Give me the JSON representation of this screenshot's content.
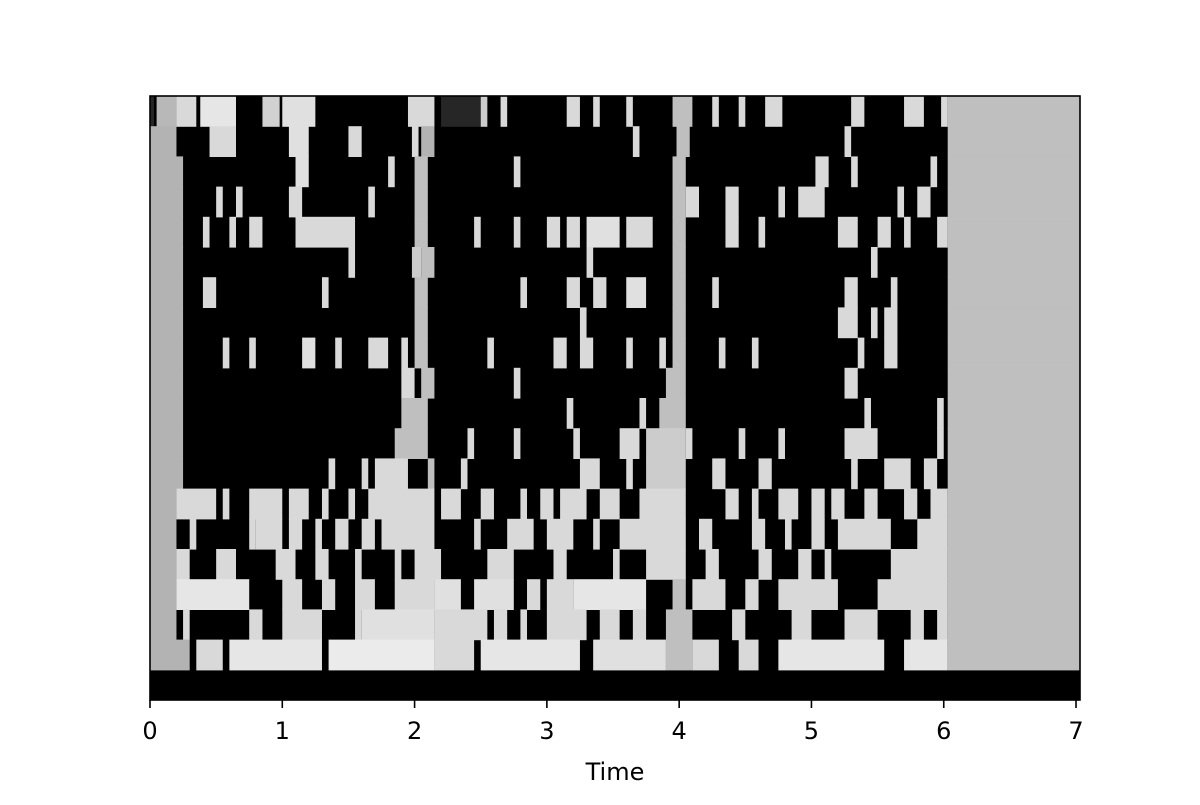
{
  "chart_data": {
    "type": "heatmap",
    "title": "",
    "xlabel": "Time",
    "ylabel": "",
    "xlim": [
      0,
      7.03
    ],
    "xticks": [
      0,
      1,
      2,
      3,
      4,
      5,
      6,
      7
    ],
    "colormap": "grayscale",
    "colors": {
      "low": "#000000",
      "high": "#ffffff",
      "frame": "#000000"
    },
    "grid": false,
    "legend": "none",
    "row_count": 20,
    "rows_top_to_bottom": [
      [
        [
          0,
          0.03,
          0.15
        ],
        [
          0.05,
          0.2,
          0.72
        ],
        [
          0.2,
          0.35,
          0.85
        ],
        [
          0.38,
          0.65,
          0.9
        ],
        [
          0.85,
          0.98,
          0.82
        ],
        [
          1.0,
          1.25,
          0.88
        ],
        [
          1.95,
          2.15,
          0.85
        ],
        [
          2.2,
          2.5,
          0.15
        ],
        [
          2.5,
          2.55,
          0.8
        ],
        [
          2.65,
          2.7,
          0.85
        ],
        [
          3.15,
          3.25,
          0.85
        ],
        [
          3.35,
          3.4,
          0.85
        ],
        [
          3.6,
          3.65,
          0.85
        ],
        [
          3.95,
          4.1,
          0.75
        ],
        [
          4.25,
          4.3,
          0.85
        ],
        [
          4.45,
          4.5,
          0.85
        ],
        [
          4.65,
          4.78,
          0.85
        ],
        [
          5.3,
          5.4,
          0.85
        ],
        [
          5.7,
          5.85,
          0.85
        ],
        [
          5.98,
          6.03,
          0.85
        ],
        [
          6.03,
          7.03,
          0.75
        ]
      ],
      [
        [
          0.0,
          0.2,
          0.7
        ],
        [
          0.45,
          0.65,
          0.85
        ],
        [
          1.05,
          1.2,
          0.88
        ],
        [
          1.5,
          1.6,
          0.85
        ],
        [
          1.98,
          2.03,
          0.85
        ],
        [
          2.05,
          2.15,
          0.7
        ],
        [
          3.65,
          3.7,
          0.85
        ],
        [
          3.98,
          4.08,
          0.75
        ],
        [
          5.25,
          5.3,
          0.85
        ],
        [
          6.03,
          7.03,
          0.75
        ]
      ],
      [
        [
          0.0,
          0.25,
          0.7
        ],
        [
          1.1,
          1.2,
          0.88
        ],
        [
          1.8,
          1.85,
          0.85
        ],
        [
          2.0,
          2.1,
          0.75
        ],
        [
          2.75,
          2.8,
          0.85
        ],
        [
          3.95,
          4.05,
          0.75
        ],
        [
          5.03,
          5.13,
          0.85
        ],
        [
          5.3,
          5.35,
          0.85
        ],
        [
          5.9,
          5.95,
          0.85
        ],
        [
          6.03,
          7.03,
          0.75
        ]
      ],
      [
        [
          0.0,
          0.25,
          0.7
        ],
        [
          0.5,
          0.55,
          0.85
        ],
        [
          0.65,
          0.7,
          0.85
        ],
        [
          1.05,
          1.15,
          0.85
        ],
        [
          1.65,
          1.7,
          0.85
        ],
        [
          2.0,
          2.1,
          0.75
        ],
        [
          3.95,
          4.05,
          0.75
        ],
        [
          4.05,
          4.15,
          0.85
        ],
        [
          4.35,
          4.45,
          0.85
        ],
        [
          4.75,
          4.8,
          0.85
        ],
        [
          4.9,
          5.1,
          0.85
        ],
        [
          5.65,
          5.7,
          0.85
        ],
        [
          5.8,
          5.9,
          0.85
        ],
        [
          6.03,
          7.03,
          0.75
        ]
      ],
      [
        [
          0.0,
          0.25,
          0.7
        ],
        [
          0.4,
          0.45,
          0.85
        ],
        [
          0.6,
          0.65,
          0.85
        ],
        [
          0.75,
          0.85,
          0.85
        ],
        [
          1.1,
          1.55,
          0.85
        ],
        [
          2.0,
          2.1,
          0.75
        ],
        [
          2.45,
          2.5,
          0.85
        ],
        [
          2.75,
          2.8,
          0.85
        ],
        [
          3.0,
          3.1,
          0.85
        ],
        [
          3.15,
          3.25,
          0.85
        ],
        [
          3.3,
          3.55,
          0.88
        ],
        [
          3.6,
          3.8,
          0.85
        ],
        [
          3.95,
          4.05,
          0.75
        ],
        [
          4.35,
          4.45,
          0.85
        ],
        [
          4.6,
          4.65,
          0.85
        ],
        [
          5.2,
          5.35,
          0.85
        ],
        [
          5.5,
          5.6,
          0.85
        ],
        [
          5.7,
          5.75,
          0.85
        ],
        [
          5.95,
          6.03,
          0.85
        ],
        [
          6.03,
          7.03,
          0.75
        ]
      ],
      [
        [
          0.0,
          0.25,
          0.7
        ],
        [
          1.5,
          1.55,
          0.85
        ],
        [
          1.98,
          2.05,
          0.8
        ],
        [
          2.05,
          2.15,
          0.75
        ],
        [
          3.3,
          3.35,
          0.85
        ],
        [
          3.95,
          4.05,
          0.75
        ],
        [
          5.45,
          5.5,
          0.85
        ],
        [
          6.03,
          7.03,
          0.75
        ]
      ],
      [
        [
          0.0,
          0.25,
          0.7
        ],
        [
          0.4,
          0.5,
          0.85
        ],
        [
          1.3,
          1.35,
          0.85
        ],
        [
          2.0,
          2.1,
          0.75
        ],
        [
          2.8,
          2.85,
          0.85
        ],
        [
          3.15,
          3.25,
          0.85
        ],
        [
          3.35,
          3.45,
          0.85
        ],
        [
          3.6,
          3.75,
          0.88
        ],
        [
          3.95,
          4.05,
          0.75
        ],
        [
          4.25,
          4.3,
          0.85
        ],
        [
          5.25,
          5.35,
          0.85
        ],
        [
          5.6,
          5.65,
          0.85
        ],
        [
          6.03,
          7.03,
          0.75
        ]
      ],
      [
        [
          0.0,
          0.25,
          0.7
        ],
        [
          2.0,
          2.1,
          0.75
        ],
        [
          3.25,
          3.3,
          0.85
        ],
        [
          3.95,
          4.05,
          0.75
        ],
        [
          5.2,
          5.35,
          0.85
        ],
        [
          5.45,
          5.5,
          0.85
        ],
        [
          5.55,
          5.65,
          0.85
        ],
        [
          6.03,
          7.03,
          0.75
        ]
      ],
      [
        [
          0.0,
          0.25,
          0.7
        ],
        [
          0.55,
          0.6,
          0.85
        ],
        [
          0.75,
          0.8,
          0.85
        ],
        [
          1.15,
          1.25,
          0.88
        ],
        [
          1.4,
          1.45,
          0.85
        ],
        [
          1.65,
          1.8,
          0.85
        ],
        [
          1.9,
          1.95,
          0.85
        ],
        [
          2.0,
          2.1,
          0.75
        ],
        [
          2.55,
          2.6,
          0.85
        ],
        [
          3.05,
          3.15,
          0.85
        ],
        [
          3.25,
          3.35,
          0.85
        ],
        [
          3.6,
          3.65,
          0.85
        ],
        [
          3.85,
          3.9,
          0.85
        ],
        [
          3.95,
          4.05,
          0.75
        ],
        [
          4.3,
          4.35,
          0.85
        ],
        [
          4.55,
          4.6,
          0.85
        ],
        [
          5.35,
          5.4,
          0.85
        ],
        [
          5.55,
          5.65,
          0.85
        ],
        [
          6.03,
          7.03,
          0.75
        ]
      ],
      [
        [
          0.0,
          0.25,
          0.7
        ],
        [
          1.9,
          2.0,
          0.85
        ],
        [
          2.05,
          2.15,
          0.75
        ],
        [
          2.75,
          2.8,
          0.85
        ],
        [
          3.9,
          4.05,
          0.75
        ],
        [
          5.25,
          5.35,
          0.85
        ],
        [
          6.03,
          7.03,
          0.75
        ]
      ],
      [
        [
          0.0,
          0.25,
          0.7
        ],
        [
          1.9,
          2.1,
          0.75
        ],
        [
          3.15,
          3.2,
          0.85
        ],
        [
          3.7,
          3.75,
          0.85
        ],
        [
          3.85,
          4.05,
          0.75
        ],
        [
          5.4,
          5.45,
          0.85
        ],
        [
          5.95,
          6.0,
          0.85
        ],
        [
          6.03,
          7.03,
          0.75
        ]
      ],
      [
        [
          0.0,
          0.25,
          0.7
        ],
        [
          1.85,
          2.1,
          0.75
        ],
        [
          2.4,
          2.45,
          0.85
        ],
        [
          2.75,
          2.8,
          0.85
        ],
        [
          3.2,
          3.25,
          0.85
        ],
        [
          3.55,
          3.7,
          0.85
        ],
        [
          3.75,
          4.05,
          0.8
        ],
        [
          4.05,
          4.1,
          0.85
        ],
        [
          4.45,
          4.5,
          0.85
        ],
        [
          4.75,
          4.8,
          0.85
        ],
        [
          5.25,
          5.5,
          0.85
        ],
        [
          5.95,
          6.0,
          0.85
        ],
        [
          6.03,
          7.03,
          0.75
        ]
      ],
      [
        [
          0.0,
          0.25,
          0.7
        ],
        [
          1.35,
          1.4,
          0.85
        ],
        [
          1.6,
          1.65,
          0.85
        ],
        [
          1.7,
          1.95,
          0.85
        ],
        [
          2.1,
          2.15,
          0.75
        ],
        [
          2.35,
          2.4,
          0.85
        ],
        [
          3.25,
          3.4,
          0.85
        ],
        [
          3.6,
          3.65,
          0.85
        ],
        [
          3.75,
          4.05,
          0.8
        ],
        [
          4.25,
          4.35,
          0.85
        ],
        [
          4.6,
          4.7,
          0.85
        ],
        [
          5.3,
          5.35,
          0.85
        ],
        [
          5.55,
          5.75,
          0.85
        ],
        [
          5.85,
          5.95,
          0.85
        ],
        [
          6.03,
          7.03,
          0.75
        ]
      ],
      [
        [
          0.0,
          0.2,
          0.7
        ],
        [
          0.2,
          0.5,
          0.85
        ],
        [
          0.55,
          0.6,
          0.85
        ],
        [
          0.75,
          1.0,
          0.85
        ],
        [
          1.05,
          1.2,
          0.85
        ],
        [
          1.3,
          1.35,
          0.85
        ],
        [
          1.5,
          1.55,
          0.85
        ],
        [
          1.65,
          2.15,
          0.85
        ],
        [
          2.2,
          2.35,
          0.85
        ],
        [
          2.5,
          2.6,
          0.85
        ],
        [
          2.8,
          2.85,
          0.85
        ],
        [
          2.95,
          3.05,
          0.85
        ],
        [
          3.1,
          3.3,
          0.85
        ],
        [
          3.4,
          3.55,
          0.85
        ],
        [
          3.7,
          4.05,
          0.85
        ],
        [
          4.35,
          4.45,
          0.85
        ],
        [
          4.55,
          4.6,
          0.85
        ],
        [
          4.75,
          4.9,
          0.85
        ],
        [
          5.0,
          5.1,
          0.85
        ],
        [
          5.15,
          5.25,
          0.85
        ],
        [
          5.4,
          5.5,
          0.85
        ],
        [
          5.7,
          5.8,
          0.85
        ],
        [
          5.9,
          6.03,
          0.85
        ],
        [
          6.03,
          7.03,
          0.75
        ]
      ],
      [
        [
          0.0,
          0.2,
          0.7
        ],
        [
          0.3,
          0.35,
          0.85
        ],
        [
          0.75,
          0.8,
          0.85
        ],
        [
          0.8,
          1.0,
          0.85
        ],
        [
          1.05,
          1.15,
          0.85
        ],
        [
          1.25,
          1.3,
          0.85
        ],
        [
          1.4,
          1.5,
          0.85
        ],
        [
          1.6,
          1.7,
          0.85
        ],
        [
          1.75,
          2.15,
          0.85
        ],
        [
          2.45,
          2.5,
          0.85
        ],
        [
          2.7,
          2.9,
          0.85
        ],
        [
          3.0,
          3.2,
          0.85
        ],
        [
          3.35,
          3.4,
          0.85
        ],
        [
          3.55,
          4.05,
          0.85
        ],
        [
          4.15,
          4.25,
          0.85
        ],
        [
          4.55,
          4.65,
          0.85
        ],
        [
          4.8,
          4.85,
          0.85
        ],
        [
          5.0,
          5.1,
          0.85
        ],
        [
          5.2,
          5.6,
          0.85
        ],
        [
          5.8,
          6.03,
          0.85
        ],
        [
          6.03,
          7.03,
          0.75
        ]
      ],
      [
        [
          0.0,
          0.2,
          0.7
        ],
        [
          0.2,
          0.3,
          0.85
        ],
        [
          0.5,
          0.65,
          0.85
        ],
        [
          0.95,
          1.1,
          0.85
        ],
        [
          1.25,
          1.35,
          0.85
        ],
        [
          1.55,
          1.6,
          0.85
        ],
        [
          1.85,
          1.9,
          0.85
        ],
        [
          2.0,
          2.2,
          0.85
        ],
        [
          2.55,
          2.75,
          0.85
        ],
        [
          3.05,
          3.15,
          0.85
        ],
        [
          3.5,
          3.55,
          0.85
        ],
        [
          3.75,
          4.05,
          0.85
        ],
        [
          4.2,
          4.3,
          0.85
        ],
        [
          4.6,
          4.7,
          0.85
        ],
        [
          4.9,
          5.0,
          0.85
        ],
        [
          5.1,
          5.15,
          0.85
        ],
        [
          5.6,
          6.03,
          0.85
        ],
        [
          6.03,
          7.03,
          0.75
        ]
      ],
      [
        [
          0.0,
          0.2,
          0.7
        ],
        [
          0.2,
          0.75,
          0.9
        ],
        [
          1.0,
          1.15,
          0.85
        ],
        [
          1.3,
          1.4,
          0.85
        ],
        [
          1.55,
          1.7,
          0.85
        ],
        [
          1.85,
          2.15,
          0.85
        ],
        [
          2.15,
          2.35,
          0.88
        ],
        [
          2.45,
          2.75,
          0.88
        ],
        [
          2.85,
          2.95,
          0.85
        ],
        [
          3.0,
          3.2,
          0.85
        ],
        [
          3.2,
          3.75,
          0.9
        ],
        [
          3.95,
          4.05,
          0.75
        ],
        [
          4.1,
          4.35,
          0.85
        ],
        [
          4.5,
          4.6,
          0.85
        ],
        [
          4.75,
          5.2,
          0.85
        ],
        [
          5.5,
          6.03,
          0.85
        ],
        [
          6.03,
          7.03,
          0.75
        ]
      ],
      [
        [
          0.0,
          0.2,
          0.7
        ],
        [
          0.25,
          0.3,
          0.85
        ],
        [
          0.75,
          0.85,
          0.85
        ],
        [
          1.0,
          1.3,
          0.85
        ],
        [
          1.55,
          1.6,
          0.85
        ],
        [
          1.6,
          2.15,
          0.88
        ],
        [
          2.15,
          2.55,
          0.85
        ],
        [
          2.6,
          2.7,
          0.85
        ],
        [
          2.8,
          2.85,
          0.85
        ],
        [
          3.0,
          3.3,
          0.85
        ],
        [
          3.4,
          3.55,
          0.85
        ],
        [
          3.65,
          3.75,
          0.85
        ],
        [
          3.9,
          4.1,
          0.75
        ],
        [
          4.4,
          4.5,
          0.85
        ],
        [
          4.85,
          5.0,
          0.85
        ],
        [
          5.25,
          5.5,
          0.85
        ],
        [
          5.75,
          5.85,
          0.85
        ],
        [
          5.95,
          6.03,
          0.85
        ],
        [
          6.03,
          7.03,
          0.75
        ]
      ],
      [
        [
          0.0,
          0.3,
          0.7
        ],
        [
          0.35,
          0.55,
          0.85
        ],
        [
          0.6,
          1.3,
          0.9
        ],
        [
          1.35,
          2.15,
          0.92
        ],
        [
          2.15,
          2.45,
          0.85
        ],
        [
          2.5,
          3.25,
          0.9
        ],
        [
          3.35,
          3.9,
          0.88
        ],
        [
          3.9,
          4.1,
          0.75
        ],
        [
          4.1,
          4.3,
          0.85
        ],
        [
          4.45,
          4.6,
          0.85
        ],
        [
          4.75,
          5.55,
          0.9
        ],
        [
          5.7,
          6.03,
          0.9
        ],
        [
          6.03,
          7.03,
          0.75
        ]
      ],
      []
    ]
  }
}
